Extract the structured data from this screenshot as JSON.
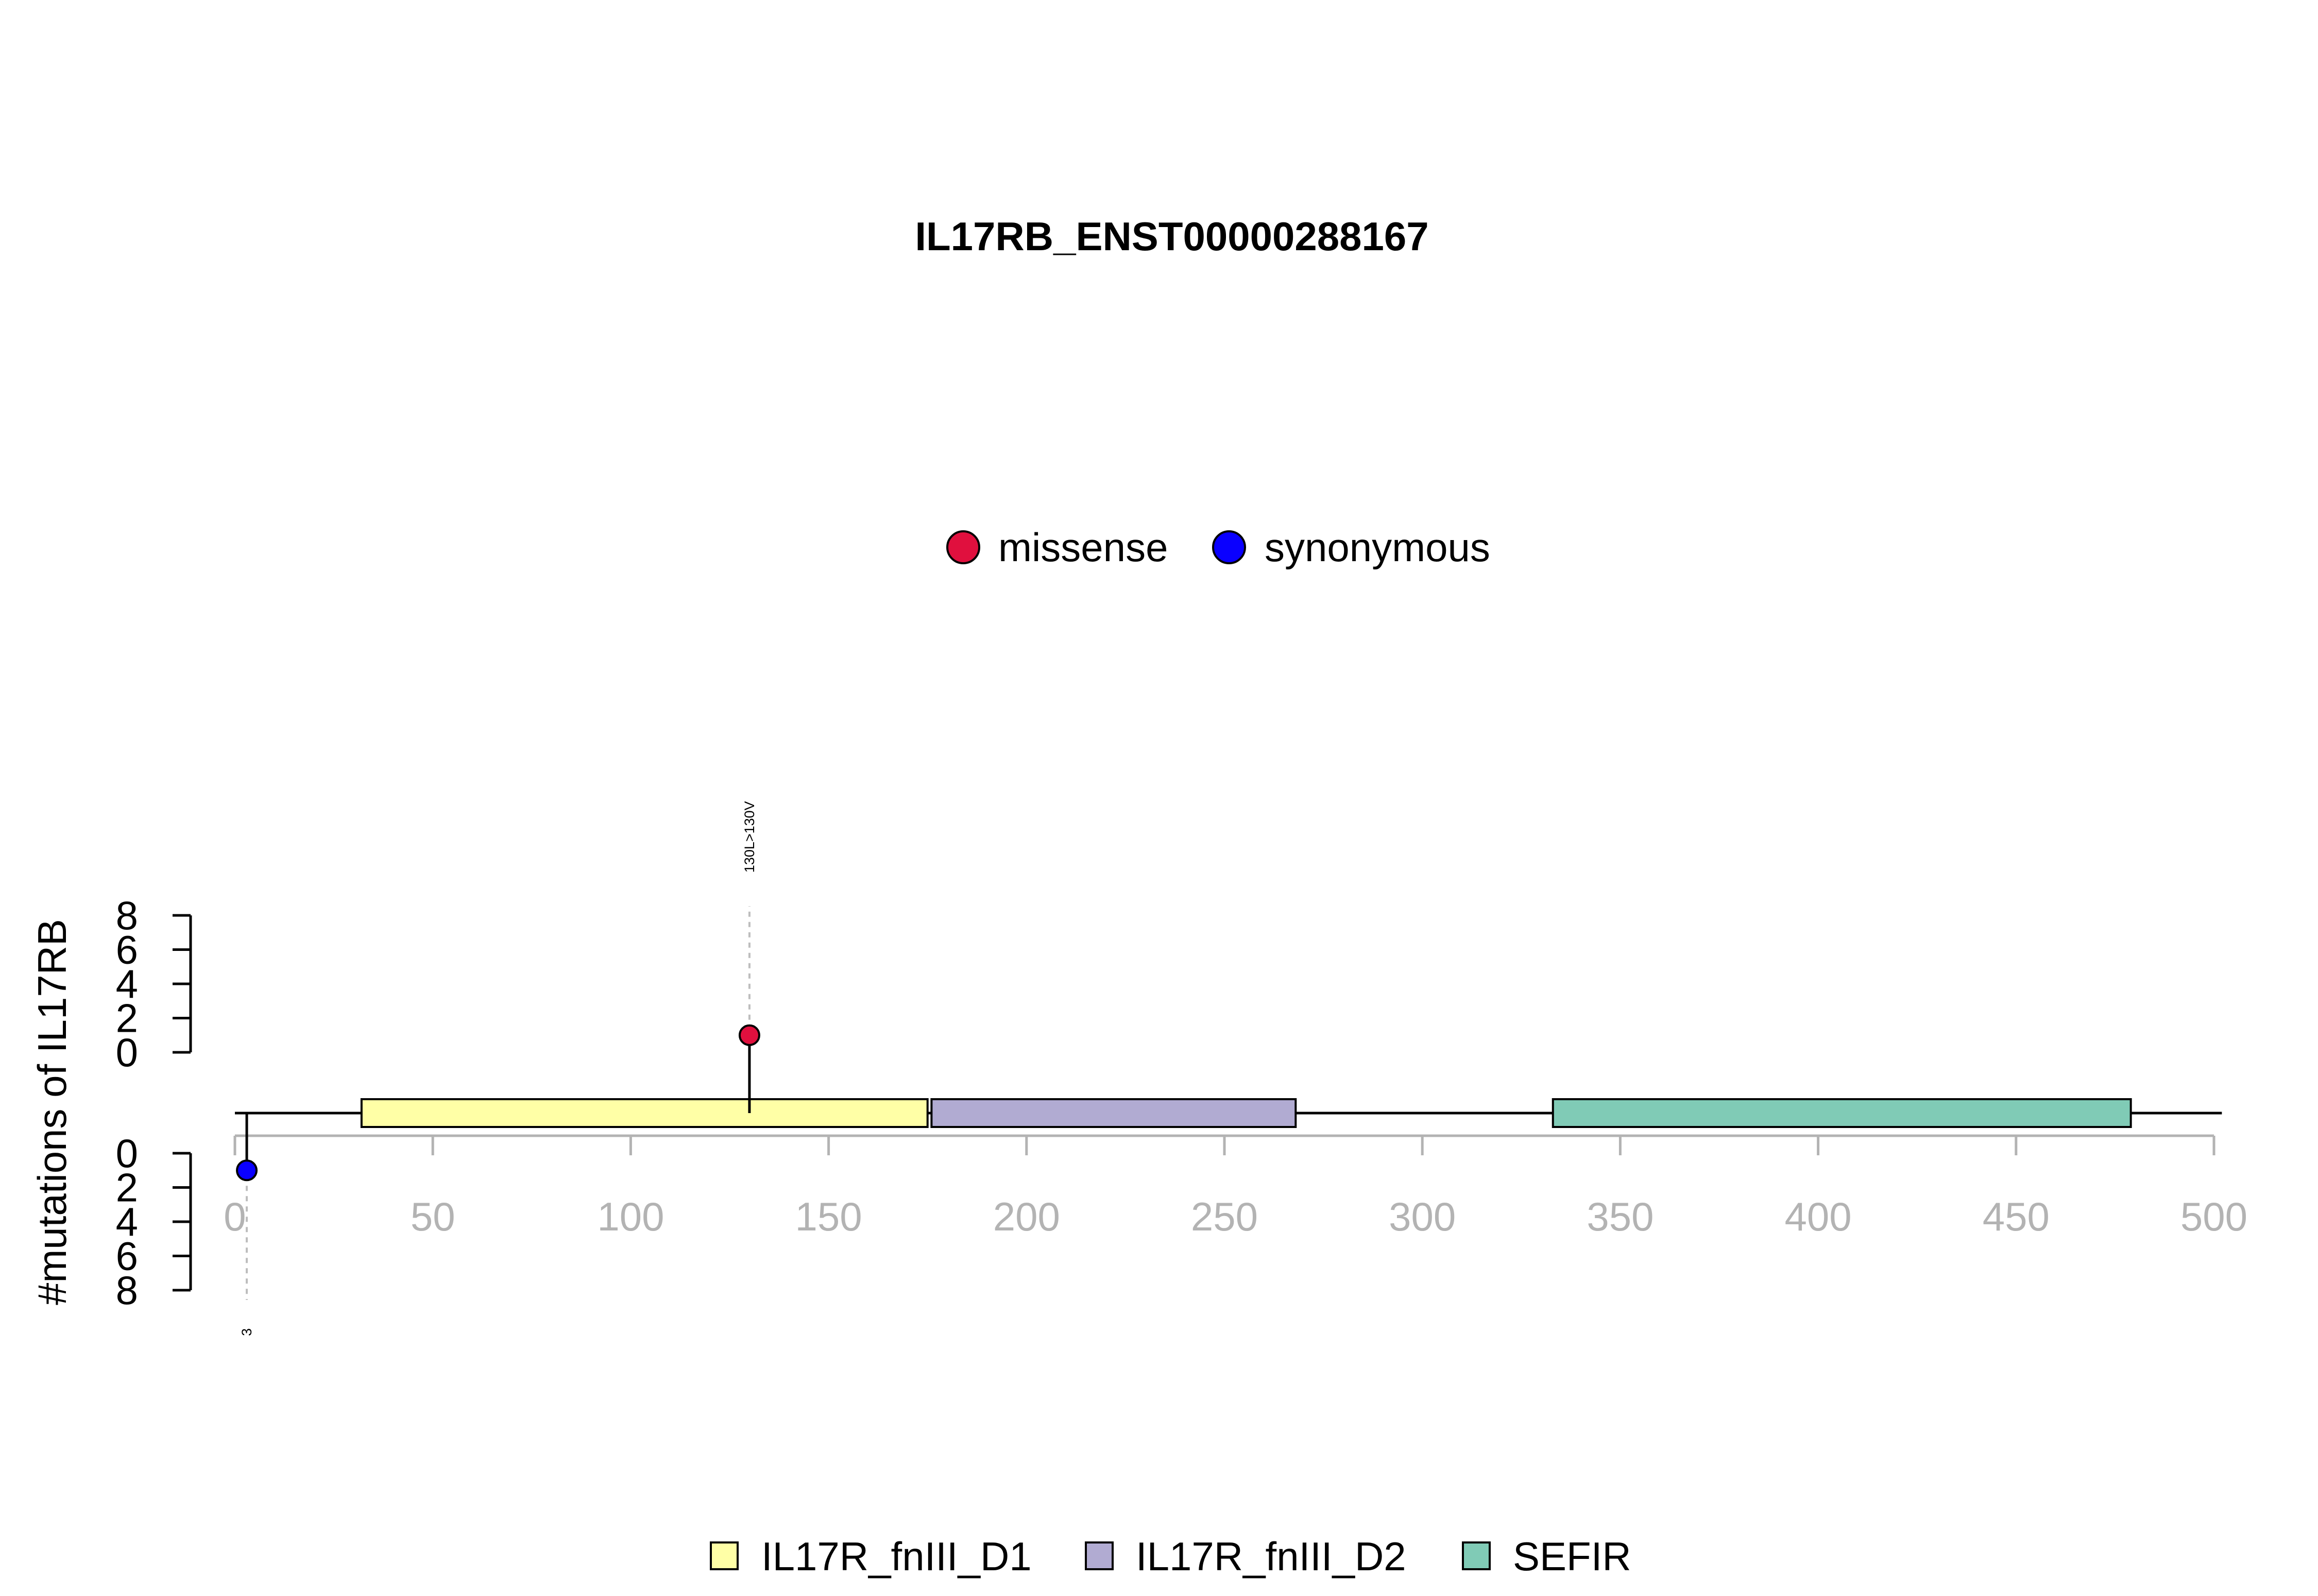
{
  "chart_data": {
    "type": "lollipop",
    "title": "IL17RB_ENST00000288167",
    "ylabel": "#mutations of IL17RB",
    "xlim": [
      0,
      500
    ],
    "x_ticks": [
      "0",
      "50",
      "100",
      "150",
      "200",
      "250",
      "300",
      "350",
      "400",
      "450",
      "500"
    ],
    "y_ticks_upper": [
      "0",
      "2",
      "4",
      "6",
      "8"
    ],
    "y_ticks_lower": [
      "0",
      "2",
      "4",
      "6",
      "8"
    ],
    "ylim": [
      0,
      8
    ],
    "mutation_legend": [
      {
        "label": "missense",
        "color": "#e0103e"
      },
      {
        "label": "synonymous",
        "color": "#0a00ff"
      }
    ],
    "mutations": [
      {
        "position": 130,
        "count": 1,
        "type": "missense",
        "side": "top",
        "label": "130L>130V",
        "color": "#e0103e"
      },
      {
        "position": 3,
        "count": 1,
        "type": "synonymous",
        "side": "bottom",
        "label": "3",
        "color": "#0a00ff"
      }
    ],
    "domains": [
      {
        "name": "IL17R_fnIII_D1",
        "start": 32,
        "end": 175,
        "color": "#ffffa6"
      },
      {
        "name": "IL17R_fnIII_D2",
        "start": 176,
        "end": 268,
        "color": "#b1abd2"
      },
      {
        "name": "SEFIR",
        "start": 333,
        "end": 479,
        "color": "#80cbb6"
      }
    ],
    "protein_length": 502
  }
}
